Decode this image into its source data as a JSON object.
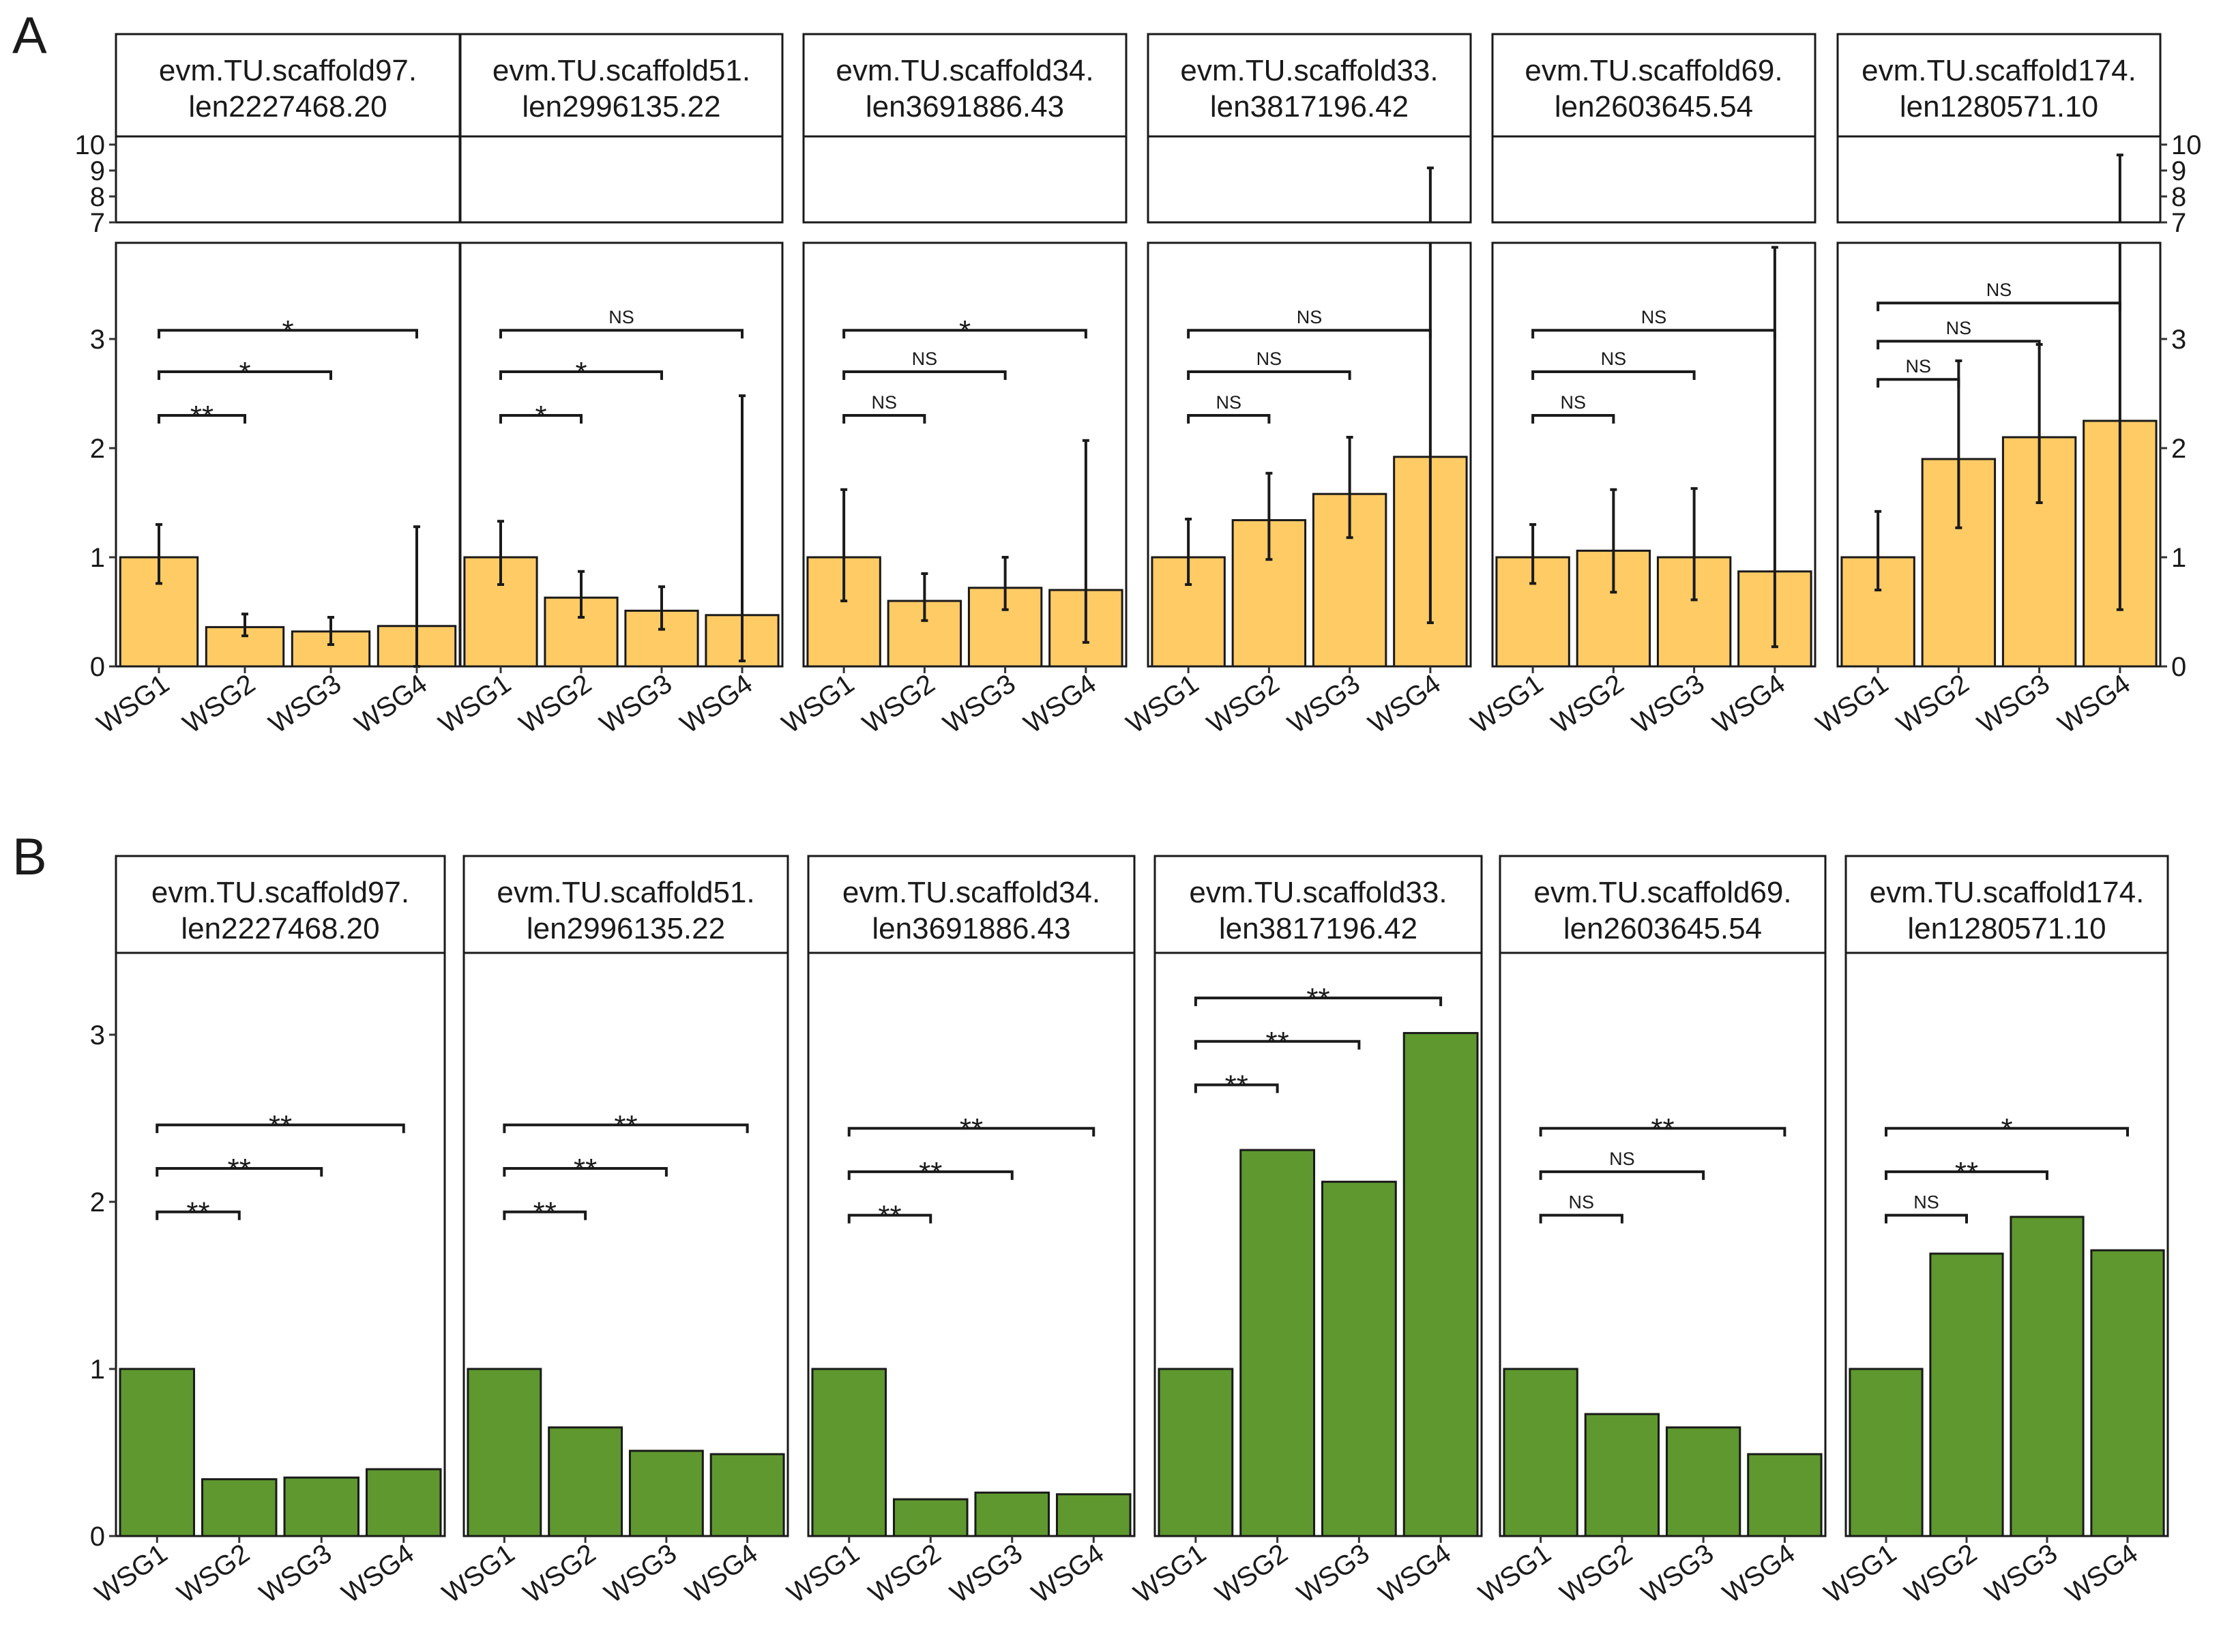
{
  "figure": {
    "colors": {
      "panel_a_bar": "#fecb65",
      "panel_b_bar": "#5e982e",
      "axis": "#1a1a1a"
    },
    "categories": [
      "WSG1",
      "WSG2",
      "WSG3",
      "WSG4"
    ]
  },
  "chart_data": [
    {
      "type": "bar",
      "panel_label": "A",
      "ylabel": "",
      "y_ticks_lower": [
        "0",
        "1",
        "2",
        "3"
      ],
      "y_ticks_upper": [
        "7",
        "8",
        "9",
        "10"
      ],
      "y_axis_break": {
        "lower_range": [
          0,
          3.85
        ],
        "upper_range": [
          7,
          10
        ]
      },
      "error_bars": true,
      "facets": [
        {
          "strip": [
            "evm.TU.scaffold97.",
            "len2227468.20"
          ],
          "categories": [
            "WSG1",
            "WSG2",
            "WSG3",
            "WSG4"
          ],
          "values": [
            1.0,
            0.36,
            0.32,
            0.37
          ],
          "error_low": [
            0.76,
            0.28,
            0.2,
            0.0
          ],
          "error_high": [
            1.3,
            0.48,
            0.45,
            1.28
          ],
          "comparisons": [
            {
              "groups": [
                "WSG1",
                "WSG2"
              ],
              "label": "**",
              "y": 2.3
            },
            {
              "groups": [
                "WSG1",
                "WSG3"
              ],
              "label": "*",
              "y": 2.7
            },
            {
              "groups": [
                "WSG1",
                "WSG4"
              ],
              "label": "*",
              "y": 3.08
            }
          ]
        },
        {
          "strip": [
            "evm.TU.scaffold51.",
            "len2996135.22"
          ],
          "categories": [
            "WSG1",
            "WSG2",
            "WSG3",
            "WSG4"
          ],
          "values": [
            1.0,
            0.63,
            0.51,
            0.47
          ],
          "error_low": [
            0.75,
            0.45,
            0.34,
            0.05
          ],
          "error_high": [
            1.33,
            0.87,
            0.73,
            2.48
          ],
          "comparisons": [
            {
              "groups": [
                "WSG1",
                "WSG2"
              ],
              "label": "*",
              "y": 2.3
            },
            {
              "groups": [
                "WSG1",
                "WSG3"
              ],
              "label": "*",
              "y": 2.7
            },
            {
              "groups": [
                "WSG1",
                "WSG4"
              ],
              "label": "NS",
              "y": 3.08
            }
          ]
        },
        {
          "strip": [
            "evm.TU.scaffold34.",
            "len3691886.43"
          ],
          "categories": [
            "WSG1",
            "WSG2",
            "WSG3",
            "WSG4"
          ],
          "values": [
            1.0,
            0.6,
            0.72,
            0.7
          ],
          "error_low": [
            0.6,
            0.42,
            0.52,
            0.22
          ],
          "error_high": [
            1.62,
            0.85,
            1.0,
            2.07
          ],
          "comparisons": [
            {
              "groups": [
                "WSG1",
                "WSG2"
              ],
              "label": "NS",
              "y": 2.3
            },
            {
              "groups": [
                "WSG1",
                "WSG3"
              ],
              "label": "NS",
              "y": 2.7
            },
            {
              "groups": [
                "WSG1",
                "WSG4"
              ],
              "label": "*",
              "y": 3.08
            }
          ]
        },
        {
          "strip": [
            "evm.TU.scaffold33.",
            "len3817196.42"
          ],
          "categories": [
            "WSG1",
            "WSG2",
            "WSG3",
            "WSG4"
          ],
          "values": [
            1.0,
            1.34,
            1.58,
            1.92
          ],
          "error_low": [
            0.75,
            0.98,
            1.18,
            0.4
          ],
          "error_high": [
            1.35,
            1.77,
            2.1,
            9.1
          ],
          "comparisons": [
            {
              "groups": [
                "WSG1",
                "WSG2"
              ],
              "label": "NS",
              "y": 2.3
            },
            {
              "groups": [
                "WSG1",
                "WSG3"
              ],
              "label": "NS",
              "y": 2.7
            },
            {
              "groups": [
                "WSG1",
                "WSG4"
              ],
              "label": "NS",
              "y": 3.08
            }
          ]
        },
        {
          "strip": [
            "evm.TU.scaffold69.",
            "len2603645.54"
          ],
          "categories": [
            "WSG1",
            "WSG2",
            "WSG3",
            "WSG4"
          ],
          "values": [
            1.0,
            1.06,
            1.0,
            0.87
          ],
          "error_low": [
            0.76,
            0.68,
            0.61,
            0.18
          ],
          "error_high": [
            1.3,
            1.62,
            1.63,
            3.84
          ],
          "comparisons": [
            {
              "groups": [
                "WSG1",
                "WSG2"
              ],
              "label": "NS",
              "y": 2.3
            },
            {
              "groups": [
                "WSG1",
                "WSG3"
              ],
              "label": "NS",
              "y": 2.7
            },
            {
              "groups": [
                "WSG1",
                "WSG4"
              ],
              "label": "NS",
              "y": 3.08
            }
          ]
        },
        {
          "strip": [
            "evm.TU.scaffold174.",
            "len1280571.10"
          ],
          "categories": [
            "WSG1",
            "WSG2",
            "WSG3",
            "WSG4"
          ],
          "values": [
            1.0,
            1.9,
            2.1,
            2.25
          ],
          "error_low": [
            0.7,
            1.27,
            1.5,
            0.52
          ],
          "error_high": [
            1.42,
            2.8,
            2.95,
            9.6
          ],
          "comparisons": [
            {
              "groups": [
                "WSG1",
                "WSG2"
              ],
              "label": "NS",
              "y": 2.63
            },
            {
              "groups": [
                "WSG1",
                "WSG3"
              ],
              "label": "NS",
              "y": 2.98
            },
            {
              "groups": [
                "WSG1",
                "WSG4"
              ],
              "label": "NS",
              "y": 3.33
            }
          ]
        }
      ]
    },
    {
      "type": "bar",
      "panel_label": "B",
      "ylabel": "",
      "y_ticks": [
        "0",
        "1",
        "2",
        "3"
      ],
      "ylim": [
        0,
        3.5
      ],
      "error_bars": false,
      "facets": [
        {
          "strip": [
            "evm.TU.scaffold97.",
            "len2227468.20"
          ],
          "categories": [
            "WSG1",
            "WSG2",
            "WSG3",
            "WSG4"
          ],
          "values": [
            1.0,
            0.34,
            0.35,
            0.4
          ],
          "comparisons": [
            {
              "groups": [
                "WSG1",
                "WSG2"
              ],
              "label": "**",
              "y": 1.94
            },
            {
              "groups": [
                "WSG1",
                "WSG3"
              ],
              "label": "**",
              "y": 2.2
            },
            {
              "groups": [
                "WSG1",
                "WSG4"
              ],
              "label": "**",
              "y": 2.46
            }
          ]
        },
        {
          "strip": [
            "evm.TU.scaffold51.",
            "len2996135.22"
          ],
          "categories": [
            "WSG1",
            "WSG2",
            "WSG3",
            "WSG4"
          ],
          "values": [
            1.0,
            0.65,
            0.51,
            0.49
          ],
          "comparisons": [
            {
              "groups": [
                "WSG1",
                "WSG2"
              ],
              "label": "**",
              "y": 1.94
            },
            {
              "groups": [
                "WSG1",
                "WSG3"
              ],
              "label": "**",
              "y": 2.2
            },
            {
              "groups": [
                "WSG1",
                "WSG4"
              ],
              "label": "**",
              "y": 2.46
            }
          ]
        },
        {
          "strip": [
            "evm.TU.scaffold34.",
            "len3691886.43"
          ],
          "categories": [
            "WSG1",
            "WSG2",
            "WSG3",
            "WSG4"
          ],
          "values": [
            1.0,
            0.22,
            0.26,
            0.25
          ],
          "comparisons": [
            {
              "groups": [
                "WSG1",
                "WSG2"
              ],
              "label": "**",
              "y": 1.92
            },
            {
              "groups": [
                "WSG1",
                "WSG3"
              ],
              "label": "**",
              "y": 2.18
            },
            {
              "groups": [
                "WSG1",
                "WSG4"
              ],
              "label": "**",
              "y": 2.44
            }
          ]
        },
        {
          "strip": [
            "evm.TU.scaffold33.",
            "len3817196.42"
          ],
          "categories": [
            "WSG1",
            "WSG2",
            "WSG3",
            "WSG4"
          ],
          "values": [
            1.0,
            2.31,
            2.12,
            3.01
          ],
          "comparisons": [
            {
              "groups": [
                "WSG1",
                "WSG2"
              ],
              "label": "**",
              "y": 2.7
            },
            {
              "groups": [
                "WSG1",
                "WSG3"
              ],
              "label": "**",
              "y": 2.96
            },
            {
              "groups": [
                "WSG1",
                "WSG4"
              ],
              "label": "**",
              "y": 3.22
            }
          ]
        },
        {
          "strip": [
            "evm.TU.scaffold69.",
            "len2603645.54"
          ],
          "categories": [
            "WSG1",
            "WSG2",
            "WSG3",
            "WSG4"
          ],
          "values": [
            1.0,
            0.73,
            0.65,
            0.49
          ],
          "comparisons": [
            {
              "groups": [
                "WSG1",
                "WSG2"
              ],
              "label": "NS",
              "y": 1.92
            },
            {
              "groups": [
                "WSG1",
                "WSG3"
              ],
              "label": "NS",
              "y": 2.18
            },
            {
              "groups": [
                "WSG1",
                "WSG4"
              ],
              "label": "**",
              "y": 2.44
            }
          ]
        },
        {
          "strip": [
            "evm.TU.scaffold174.",
            "len1280571.10"
          ],
          "categories": [
            "WSG1",
            "WSG2",
            "WSG3",
            "WSG4"
          ],
          "values": [
            1.0,
            1.69,
            1.91,
            1.71
          ],
          "comparisons": [
            {
              "groups": [
                "WSG1",
                "WSG2"
              ],
              "label": "NS",
              "y": 1.92
            },
            {
              "groups": [
                "WSG1",
                "WSG3"
              ],
              "label": "**",
              "y": 2.18
            },
            {
              "groups": [
                "WSG1",
                "WSG4"
              ],
              "label": "*",
              "y": 2.44
            }
          ]
        }
      ]
    }
  ]
}
